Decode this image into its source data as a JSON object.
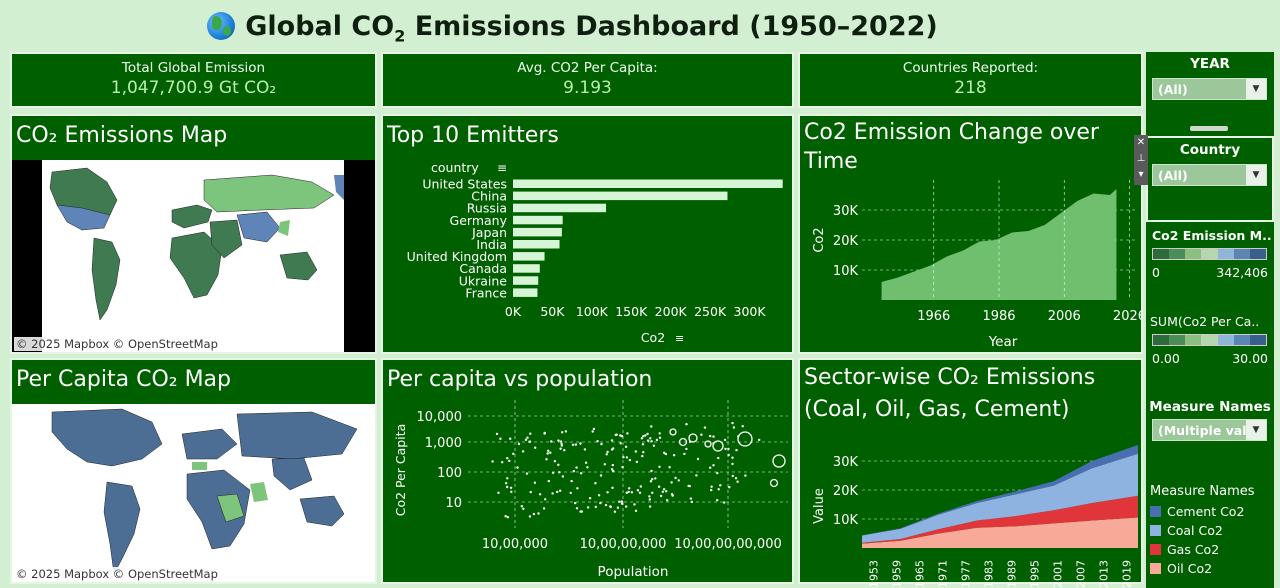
{
  "dashboard": {
    "title_pre": "Global CO",
    "title_sub": "2",
    "title_post": " Emissions Dashboard (1950–2022)"
  },
  "kpis": [
    {
      "label": "Total Global Emission",
      "value": "1,047,700.9 Gt CO₂"
    },
    {
      "label": "Avg. CO2 Per Capita:",
      "value": "9.193"
    },
    {
      "label": "Countries Reported:",
      "value": "218"
    }
  ],
  "panels": {
    "map": "CO₂ Emissions Map",
    "top10": "Top 10 Emitters",
    "change_line1": "Co2 Emission Change over",
    "change_line2": "Time",
    "percap_map": "Per Capita CO₂ Map",
    "scatter": "Per capita vs population",
    "sector_line1": "Sector-wise CO₂ Emissions",
    "sector_line2": "(Coal, Oil, Gas, Cement)"
  },
  "attribution": "© 2025 Mapbox © OpenStreetMap",
  "filters": {
    "year_label": "YEAR",
    "year_value": "(All)",
    "country_label": "Country",
    "country_value": "(All)",
    "measure_label": "Measure Names",
    "measure_value": "(Multiple val..."
  },
  "legends": {
    "co2_label": "Co2  Emission M..",
    "co2_min": "0",
    "co2_max": "342,406",
    "percap_label": "SUM(Co2 Per Ca..",
    "percap_min": "0.00",
    "percap_max": "30.00",
    "measure_title": "Measure Names",
    "measures": [
      {
        "name": "Cement Co2",
        "color": "#4a6fb0"
      },
      {
        "name": "Coal Co2",
        "color": "#8fb3e0"
      },
      {
        "name": "Gas Co2",
        "color": "#e0353a"
      },
      {
        "name": "Oil Co2",
        "color": "#f7aa98"
      }
    ]
  },
  "colors": {
    "panel": "#006000",
    "bg": "#d3efd1",
    "bar": "#d6f5d6",
    "area": "#6fbf6f"
  },
  "chart_data": [
    {
      "type": "bar",
      "title": "Top 10 Emitters",
      "field_label": "country",
      "xlabel": "Co2",
      "categories": [
        "United States",
        "China",
        "Russia",
        "Germany",
        "Japan",
        "India",
        "United Kingdom",
        "Canada",
        "Ukraine",
        "France"
      ],
      "values": [
        342000,
        272000,
        118000,
        63000,
        62000,
        59000,
        40000,
        34000,
        32000,
        31000
      ],
      "xticks": [
        "0K",
        "50K",
        "100K",
        "150K",
        "200K",
        "250K",
        "300K"
      ],
      "xlim": [
        0,
        342406
      ]
    },
    {
      "type": "area",
      "title": "Co2 Emission Change over Time",
      "xlabel": "Year",
      "ylabel": "Co2",
      "x_ticks": [
        1966,
        1986,
        2006,
        2026
      ],
      "y_ticks": [
        "10K",
        "20K",
        "30K"
      ],
      "x": [
        1950,
        1955,
        1960,
        1965,
        1970,
        1975,
        1980,
        1985,
        1990,
        1995,
        2000,
        2005,
        2010,
        2015,
        2020,
        2022
      ],
      "values": [
        6000,
        7500,
        9500,
        11500,
        14500,
        16500,
        19500,
        20000,
        22500,
        23000,
        25000,
        29000,
        33000,
        35500,
        35000,
        37000
      ],
      "ylim": [
        0,
        40000
      ]
    },
    {
      "type": "scatter",
      "title": "Per capita vs population",
      "xlabel": "Population",
      "ylabel": "Co2 Per Capita",
      "x_ticks": [
        "10,00,000",
        "10,00,00,000",
        "10,00,00,00,000"
      ],
      "y_ticks": [
        "10,000",
        "1,000",
        "100",
        "10"
      ],
      "x_scale": "log",
      "y_scale": "log"
    },
    {
      "type": "area",
      "title": "Sector-wise CO₂ Emissions (Coal, Oil, Gas, Cement)",
      "ylabel": "Value",
      "y_ticks": [
        "10K",
        "20K",
        "30K"
      ],
      "x_ticks": [
        "1953",
        "1959",
        "1965",
        "1971",
        "1977",
        "1983",
        "1989",
        "1995",
        "2001",
        "2007",
        "2013",
        "2019"
      ],
      "x": [
        1950,
        1960,
        1970,
        1980,
        1990,
        2000,
        2010,
        2022
      ],
      "series": [
        {
          "name": "Oil Co2",
          "values": [
            1500,
            2500,
            5000,
            7000,
            7500,
            8500,
            9500,
            10500
          ]
        },
        {
          "name": "Gas Co2",
          "values": [
            300,
            600,
            1500,
            2500,
            3500,
            4500,
            6000,
            7500
          ]
        },
        {
          "name": "Coal Co2",
          "values": [
            2500,
            3500,
            5000,
            6000,
            7500,
            8500,
            12000,
            14500
          ]
        },
        {
          "name": "Cement Co2",
          "values": [
            100,
            200,
            400,
            700,
            1000,
            1500,
            2500,
            3000
          ]
        }
      ],
      "ylim": [
        0,
        40000
      ]
    }
  ]
}
